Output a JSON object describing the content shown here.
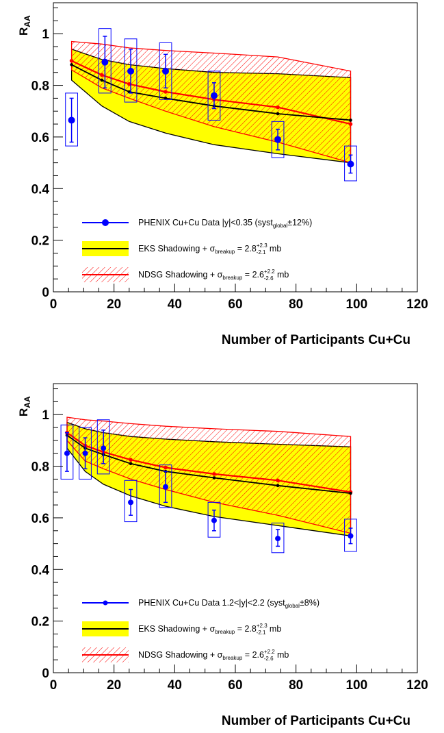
{
  "chart_data": [
    {
      "type": "line",
      "title": "",
      "xlabel": "Number of Participants Cu+Cu",
      "ylabel": "R",
      "ylabel_sub": "AA",
      "xlim": [
        0,
        120
      ],
      "ylim": [
        0,
        1.12
      ],
      "x_ticks": [
        0,
        20,
        40,
        60,
        80,
        100,
        120
      ],
      "y_ticks": [
        0,
        0.2,
        0.4,
        0.6,
        0.8,
        1
      ],
      "x_tick_labels": [
        "0",
        "20",
        "40",
        "60",
        "80",
        "100",
        "120"
      ],
      "y_tick_labels": [
        "0",
        "0.2",
        "0.4",
        "0.6",
        "0.8",
        "1"
      ],
      "grid": false,
      "legend_position": "bottom-center",
      "series": [
        {
          "kind": "data",
          "color": "#0000ff",
          "x": [
            6,
            17,
            25.5,
            37,
            53,
            74,
            98
          ],
          "y": [
            0.665,
            0.89,
            0.855,
            0.855,
            0.76,
            0.59,
            0.495
          ],
          "stat_low": [
            0.58,
            0.79,
            0.77,
            0.79,
            0.71,
            0.55,
            0.46
          ],
          "stat_high": [
            0.75,
            0.99,
            0.94,
            0.92,
            0.81,
            0.63,
            0.53
          ],
          "syst_low": [
            0.565,
            0.77,
            0.735,
            0.745,
            0.665,
            0.52,
            0.43
          ],
          "syst_high": [
            0.77,
            1.02,
            0.98,
            0.965,
            0.855,
            0.66,
            0.565
          ],
          "box_halfwidth": 2
        },
        {
          "kind": "band",
          "color": "#ffff00",
          "line_color": "#000000",
          "x": [
            6,
            16,
            25,
            37,
            53,
            74,
            98
          ],
          "central": [
            0.88,
            0.82,
            0.775,
            0.75,
            0.72,
            0.69,
            0.665
          ],
          "low": [
            0.82,
            0.72,
            0.66,
            0.615,
            0.57,
            0.535,
            0.5
          ],
          "high": [
            0.94,
            0.9,
            0.88,
            0.865,
            0.85,
            0.845,
            0.83
          ]
        },
        {
          "kind": "band-hatched",
          "color": "#ff0000",
          "x": [
            6,
            16,
            25,
            37,
            53,
            74,
            98
          ],
          "central": [
            0.895,
            0.84,
            0.805,
            0.775,
            0.745,
            0.715,
            0.65
          ],
          "low": [
            0.86,
            0.79,
            0.75,
            0.7,
            0.64,
            0.58,
            0.5
          ],
          "high": [
            0.97,
            0.96,
            0.945,
            0.935,
            0.925,
            0.91,
            0.855
          ]
        }
      ],
      "legend": [
        {
          "marker": "point",
          "text": "PHENIX Cu+Cu Data |y|<0.35 (syst",
          "sub": "global",
          "tail": "±12%)"
        },
        {
          "marker": "band",
          "text": "EKS Shadowing + σ",
          "sub": "breakup",
          "mid": " = 2.8",
          "sup2": "+2.3",
          "sub2": "-2.1",
          "tail": " mb"
        },
        {
          "marker": "hatch",
          "text": "NDSG Shadowing + σ",
          "sub": "breakup",
          "mid": " = 2.6",
          "sup2": "+2.2",
          "sub2": "-2.6",
          "tail": " mb"
        }
      ]
    },
    {
      "type": "line",
      "title": "",
      "xlabel": "Number of Participants Cu+Cu",
      "ylabel": "R",
      "ylabel_sub": "AA",
      "xlim": [
        0,
        120
      ],
      "ylim": [
        0,
        1.12
      ],
      "x_ticks": [
        0,
        20,
        40,
        60,
        80,
        100,
        120
      ],
      "y_ticks": [
        0,
        0.2,
        0.4,
        0.6,
        0.8,
        1
      ],
      "x_tick_labels": [
        "0",
        "20",
        "40",
        "60",
        "80",
        "100",
        "120"
      ],
      "y_tick_labels": [
        "0",
        "0.2",
        "0.4",
        "0.6",
        "0.8",
        "1"
      ],
      "grid": false,
      "legend_position": "bottom-center",
      "series": [
        {
          "kind": "data",
          "color": "#0000ff",
          "x": [
            4.5,
            10.5,
            16.5,
            25.5,
            37,
            53,
            74,
            98
          ],
          "y": [
            0.85,
            0.85,
            0.87,
            0.66,
            0.72,
            0.59,
            0.52,
            0.53
          ],
          "stat_low": [
            0.78,
            0.79,
            0.81,
            0.61,
            0.66,
            0.55,
            0.49,
            0.5
          ],
          "stat_high": [
            0.93,
            0.91,
            0.94,
            0.71,
            0.78,
            0.63,
            0.555,
            0.56
          ],
          "syst_low": [
            0.75,
            0.75,
            0.77,
            0.585,
            0.64,
            0.525,
            0.465,
            0.47
          ],
          "syst_high": [
            0.96,
            0.95,
            0.98,
            0.745,
            0.805,
            0.66,
            0.58,
            0.595
          ],
          "box_halfwidth": 2
        },
        {
          "kind": "band",
          "color": "#ffff00",
          "line_color": "#000000",
          "x": [
            4.5,
            10.5,
            16.5,
            25.5,
            37,
            53,
            74,
            98
          ],
          "central": [
            0.92,
            0.87,
            0.845,
            0.81,
            0.78,
            0.755,
            0.725,
            0.695
          ],
          "low": [
            0.87,
            0.78,
            0.73,
            0.685,
            0.645,
            0.605,
            0.57,
            0.53
          ],
          "high": [
            0.97,
            0.945,
            0.93,
            0.915,
            0.905,
            0.895,
            0.885,
            0.875
          ]
        },
        {
          "kind": "band-hatched",
          "color": "#ff0000",
          "x": [
            4.5,
            10.5,
            16.5,
            25.5,
            37,
            53,
            74,
            98
          ],
          "central": [
            0.93,
            0.88,
            0.855,
            0.825,
            0.795,
            0.77,
            0.745,
            0.7
          ],
          "low": [
            0.9,
            0.82,
            0.79,
            0.75,
            0.71,
            0.66,
            0.61,
            0.54
          ],
          "high": [
            0.99,
            0.98,
            0.975,
            0.965,
            0.955,
            0.945,
            0.935,
            0.915
          ]
        }
      ],
      "legend": [
        {
          "marker": "point",
          "text": "PHENIX Cu+Cu Data 1.2<|y|<2.2 (syst",
          "sub": "global",
          "tail": "±8%)"
        },
        {
          "marker": "band",
          "text": "EKS Shadowing + σ",
          "sub": "breakup",
          "mid": " = 2.8",
          "sup2": "+2.3",
          "sub2": "-2.1",
          "tail": " mb"
        },
        {
          "marker": "hatch",
          "text": "NDSG Shadowing + σ",
          "sub": "breakup",
          "mid": " = 2.6",
          "sup2": "+2.2",
          "sub2": "-2.6",
          "tail": " mb"
        }
      ]
    }
  ]
}
